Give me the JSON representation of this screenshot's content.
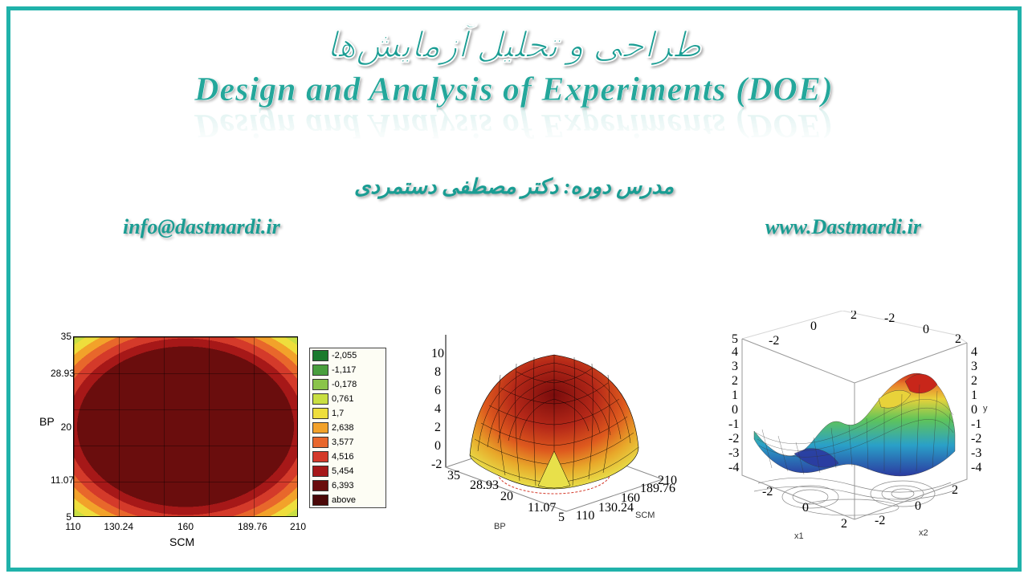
{
  "title_fa": "طراحی و تحلیل آزمایش‌ها",
  "title_en": "Design and Analysis of Experiments (DOE)",
  "instructor": "مدرس دوره: دکتر مصطفی دستمردی",
  "email": "info@dastmardi.ir",
  "website": "www.Dastmardi.ir",
  "accent_color": "#20b2aa",
  "text_color": "#1a9d93",
  "contour": {
    "type": "contour",
    "xlabel": "SCM",
    "ylabel": "BP",
    "xticks": [
      110,
      130.24,
      160,
      189.76,
      210
    ],
    "yticks": [
      5,
      11.07,
      20,
      28.93,
      35
    ],
    "xlim": [
      110,
      210
    ],
    "ylim": [
      5,
      35
    ],
    "legend": [
      {
        "color": "#1a7a2e",
        "label": "-2,055"
      },
      {
        "color": "#4a9f3e",
        "label": "-1,117"
      },
      {
        "color": "#8ac44a",
        "label": "-0,178"
      },
      {
        "color": "#c9df42",
        "label": "0,761"
      },
      {
        "color": "#eede3c",
        "label": "1,7"
      },
      {
        "color": "#f2a22a",
        "label": "2,638"
      },
      {
        "color": "#e8672b",
        "label": "3,577"
      },
      {
        "color": "#d43a2a",
        "label": "4,516"
      },
      {
        "color": "#a61818",
        "label": "5,454"
      },
      {
        "color": "#6a0d0d",
        "label": "6,393"
      },
      {
        "color": "#4b0808",
        "label": "above"
      }
    ],
    "grid_color": "rgba(0,0,0,0.35)",
    "border_color": "#000000",
    "label_fontsize": 14,
    "tick_fontsize": 12
  },
  "dome": {
    "type": "3d-surface",
    "xlabel": "BP",
    "ylabel": "SCM",
    "zticks": [
      -2,
      0,
      2,
      4,
      6,
      8,
      10
    ],
    "xticks": [
      5,
      11.07,
      20,
      28.93,
      35
    ],
    "yticks": [
      110,
      130.24,
      160,
      189.76,
      210
    ],
    "zlim": [
      -2,
      10
    ],
    "colormap": {
      "low": "#e8e04a",
      "mid": "#de5a1e",
      "high": "#7a0c0c"
    },
    "contour_ring_colors": [
      "#d43a2a",
      "#e8672b",
      "#f2a22a"
    ],
    "mesh_color": "#000000",
    "mesh_width": 0.5,
    "base_color": "#eeeeee",
    "label_fontsize": 11
  },
  "wave": {
    "type": "3d-surface",
    "x_range": [
      -3,
      3
    ],
    "y_range": [
      -3,
      3
    ],
    "z_range": [
      -5,
      5
    ],
    "xticks": [
      -2,
      0,
      2
    ],
    "yticks": [
      -2,
      0,
      2
    ],
    "zticks": [
      -4,
      -3,
      -2,
      -1,
      0,
      1,
      2,
      3,
      4,
      5
    ],
    "xlabel": "x1",
    "ylabel": "x2",
    "zlabel": "y",
    "colormap_stops": [
      {
        "stop": 0.0,
        "color": "#2b3aa0"
      },
      {
        "stop": 0.25,
        "color": "#2aa0c8"
      },
      {
        "stop": 0.5,
        "color": "#5fc45a"
      },
      {
        "stop": 0.7,
        "color": "#e8d23a"
      },
      {
        "stop": 0.85,
        "color": "#e87a2a"
      },
      {
        "stop": 1.0,
        "color": "#c8261a"
      }
    ],
    "mesh_color": "#333333",
    "mesh_width": 0.4,
    "base_contour_color": "#888888",
    "label_fontsize": 11
  }
}
